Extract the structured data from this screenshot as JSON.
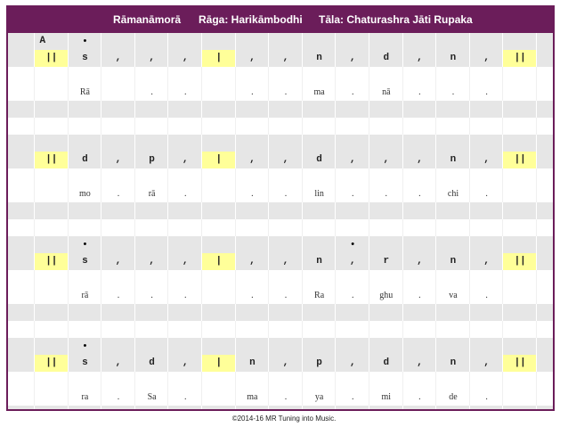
{
  "header": {
    "song": "Rāmanāmorā",
    "raga": "Rāga:  Harikāmbodhi",
    "tala": "Tāla:  Chaturashra Jāti Rupaka"
  },
  "footer": "©2014-16 MR Tuning into Music.",
  "bar_mark": "||",
  "beat_mark": "|",
  "octave_mark": "•",
  "label_A": "A",
  "lines": [
    {
      "label": "A",
      "upper_dots": [
        1
      ],
      "swaras": [
        "s",
        ",",
        ",",
        ",",
        ",",
        ",",
        "n",
        ",",
        "d",
        ",",
        "n",
        ","
      ],
      "lyrics": [
        "Rā",
        "",
        ".",
        ".",
        "",
        ".",
        ".",
        "ma",
        ".",
        "nā",
        ".",
        ".",
        "."
      ],
      "dot_lyrics_index": [
        1
      ]
    },
    {
      "label": "",
      "upper_dots": [],
      "swaras": [
        "d",
        ",",
        "p",
        ",",
        ",",
        ",",
        "d",
        ",",
        ",",
        ",",
        "n",
        ","
      ],
      "lyrics": [
        "mo",
        ".",
        "rā",
        ".",
        "",
        ".",
        ".",
        "lin",
        ".",
        ".",
        ".",
        "chi",
        "."
      ]
    },
    {
      "label": "",
      "upper_dots": [
        1,
        9
      ],
      "swaras": [
        "s",
        ",",
        ",",
        ",",
        ",",
        ",",
        "n",
        ",",
        "r",
        ",",
        "n",
        ","
      ],
      "lyrics": [
        "rā",
        ".",
        ".",
        ".",
        "",
        ".",
        ".",
        "Ra",
        ".",
        "ghu",
        ".",
        "va",
        "."
      ]
    },
    {
      "label": "",
      "upper_dots": [
        1
      ],
      "swaras": [
        "s",
        ",",
        "d",
        ",",
        "n",
        ",",
        "p",
        ",",
        "d",
        ",",
        "n",
        ","
      ],
      "lyrics": [
        "ra",
        ".",
        "Sa",
        ".",
        "",
        "ma",
        ".",
        "ya",
        ".",
        "mi",
        ".",
        "de",
        "."
      ]
    }
  ]
}
